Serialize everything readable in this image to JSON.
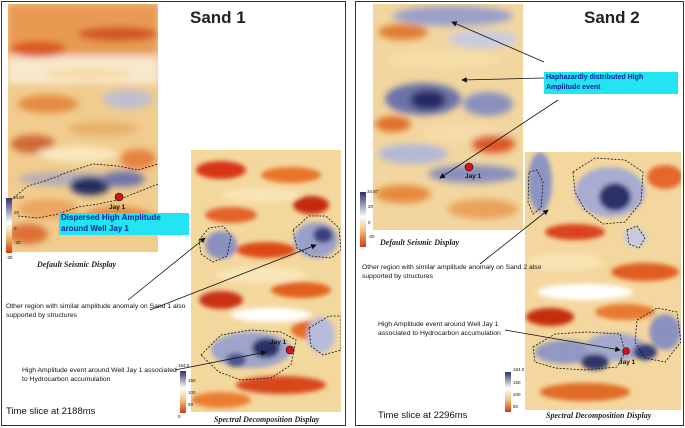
{
  "sand1": {
    "title": "Sand 1",
    "default_caption": "Default Seismic Display",
    "spectral_caption": "Spectral Decomposition Display",
    "highlight_label": "Dispersed High Amplitude around Well Jay 1",
    "other_region_note": "Other region with similar amplitude anomaly on Sand 1 also supported by structures",
    "high_amp_note": "High Amplitude event around Well Jay 1 associated to Hydrocarbon accumulation",
    "time_slice": "Time slice at 2188ms",
    "well_label": "Jay 1",
    "seismic_scale": {
      "max": "34.87",
      "ticks": [
        "20",
        "0",
        "-20"
      ],
      "min": "-35"
    },
    "spectral_scale": {
      "max": "184.0",
      "ticks": [
        "150",
        "100",
        "50"
      ],
      "min": "0"
    }
  },
  "sand2": {
    "title": "Sand 2",
    "default_caption": "Default Seismic Display",
    "spectral_caption": "Spectral Decomposition Display",
    "highlight_label": "Haphazardly distributed High Amplitude event",
    "other_region_note": "Other region with similar amplitude anomaly on Sand 2 also supported by structures",
    "high_amp_note": "High Amplitude event around Well Jay 1 associated to Hydrocarbon accumulation",
    "time_slice": "Time slice at 2296ms",
    "well_label": "Jay 1",
    "seismic_scale": {
      "max": "34.87",
      "ticks": [
        "20",
        "0",
        "-20"
      ],
      "min": "-35"
    },
    "spectral_scale": {
      "max": "184.0",
      "ticks": [
        "150",
        "100",
        "50"
      ],
      "min": "0"
    }
  },
  "colors": {
    "high_amplitude": "#2a3470",
    "low_amplitude": "#e23a10",
    "background_amplitude": "#f2d39a",
    "highlight": "#22e4f2",
    "well_marker": "#d41414"
  }
}
